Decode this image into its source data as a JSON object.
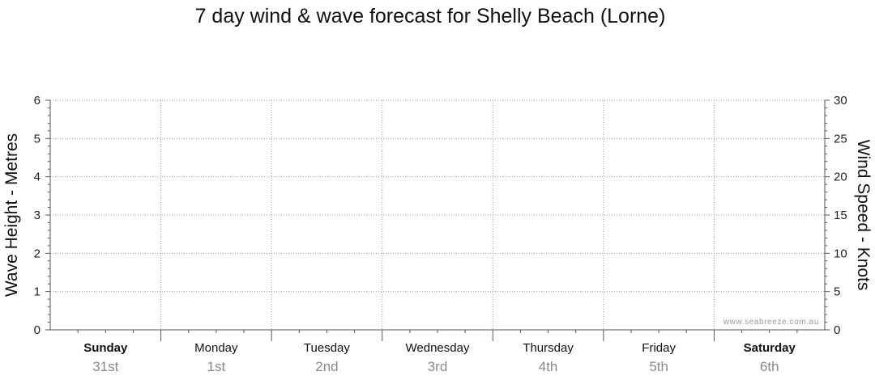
{
  "chart_data": {
    "type": "line",
    "title": "7 day wind & wave forecast for Shelly Beach (Lorne)",
    "y_left": {
      "label": "Wave Height - Metres",
      "ylim": [
        0,
        6
      ],
      "ticks": [
        "0",
        "1",
        "2",
        "3",
        "4",
        "5",
        "6"
      ]
    },
    "y_right": {
      "label": "Wind Speed - Knots",
      "ylim": [
        0,
        30
      ],
      "ticks": [
        "0",
        "5",
        "10",
        "15",
        "20",
        "25",
        "30"
      ]
    },
    "days": [
      {
        "name": "Sunday",
        "date": "31st",
        "bold": true
      },
      {
        "name": "Monday",
        "date": "1st",
        "bold": false
      },
      {
        "name": "Tuesday",
        "date": "2nd",
        "bold": false
      },
      {
        "name": "Wednesday",
        "date": "3rd",
        "bold": false
      },
      {
        "name": "Thursday",
        "date": "4th",
        "bold": false
      },
      {
        "name": "Friday",
        "date": "5th",
        "bold": false
      },
      {
        "name": "Saturday",
        "date": "6th",
        "bold": true
      }
    ],
    "grid": true,
    "series": [],
    "credit": "www.seabreeze.com.au"
  },
  "colors": {
    "grid": "#9a9a9a",
    "axis": "#555555"
  }
}
